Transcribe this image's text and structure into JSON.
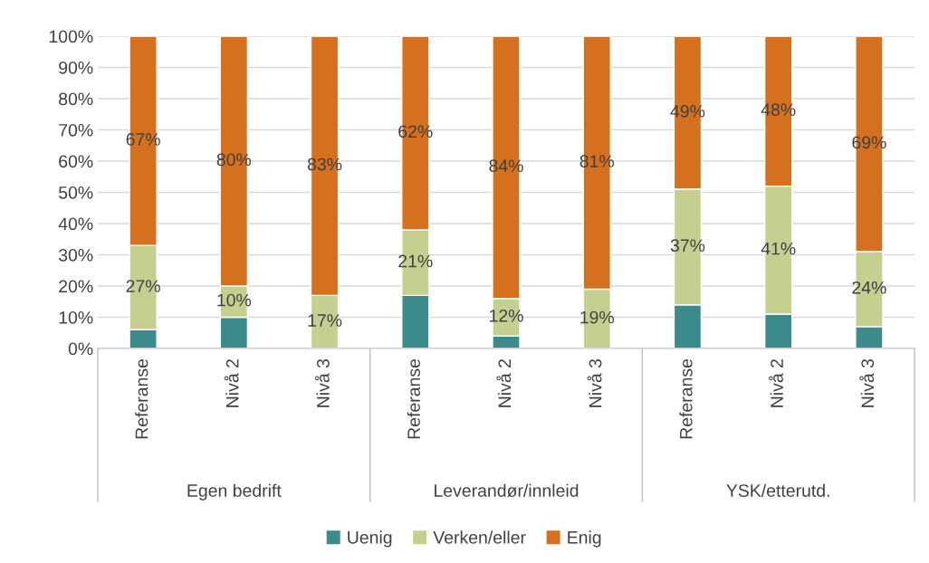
{
  "chart_data": {
    "type": "bar",
    "stacked": true,
    "categories": [
      "Referanse",
      "Nivå 2",
      "Nivå 3",
      "Referanse",
      "Nivå 2",
      "Nivå 3",
      "Referanse",
      "Nivå 2",
      "Nivå 3"
    ],
    "series": [
      {
        "name": "Uenig",
        "color": "#3d8a8a",
        "values": [
          6,
          10,
          0,
          17,
          4,
          0,
          14,
          11,
          7
        ],
        "value_labels": [
          null,
          null,
          null,
          null,
          null,
          null,
          null,
          null,
          null
        ]
      },
      {
        "name": "Verken/eller",
        "color": "#c5cf8f",
        "values": [
          27,
          10,
          17,
          21,
          12,
          19,
          37,
          41,
          24
        ],
        "value_labels": [
          "27%",
          "10%",
          "17%",
          "21%",
          "12%",
          "19%",
          "37%",
          "41%",
          "24%"
        ]
      },
      {
        "name": "Enig",
        "color": "#d4701e",
        "values": [
          67,
          80,
          83,
          62,
          84,
          81,
          49,
          48,
          69
        ],
        "value_labels": [
          "67%",
          "80%",
          "83%",
          "62%",
          "84%",
          "81%",
          "49%",
          "48%",
          "69%"
        ]
      }
    ],
    "ylim": [
      0,
      100
    ],
    "yticks": [
      {
        "value": 0,
        "label": "0%"
      },
      {
        "value": 10,
        "label": "10%"
      },
      {
        "value": 20,
        "label": "20%"
      },
      {
        "value": 30,
        "label": "30%"
      },
      {
        "value": 40,
        "label": "40%"
      },
      {
        "value": 50,
        "label": "50%"
      },
      {
        "value": 60,
        "label": "60%"
      },
      {
        "value": 70,
        "label": "70%"
      },
      {
        "value": 80,
        "label": "80%"
      },
      {
        "value": 90,
        "label": "90%"
      },
      {
        "value": 100,
        "label": "100%"
      }
    ],
    "annotations": [
      "Egen bedrift",
      "Leverandør/innleid",
      "YSK/etterutd."
    ],
    "grid": "y",
    "legend": "bottom"
  }
}
